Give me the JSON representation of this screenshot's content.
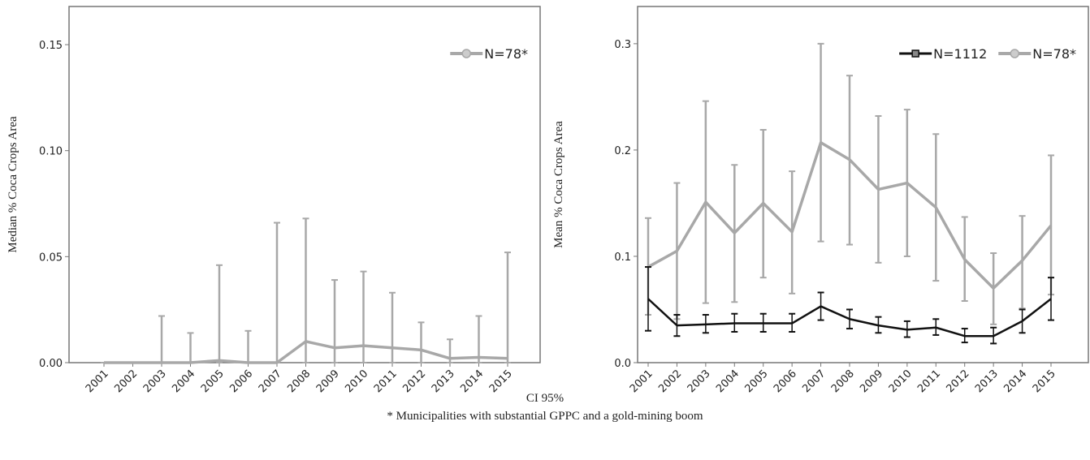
{
  "chart_data": [
    {
      "type": "line",
      "ylabel": "Median % Coca Crops Area",
      "categories": [
        "2001",
        "2002",
        "2003",
        "2004",
        "2005",
        "2006",
        "2007",
        "2008",
        "2009",
        "2010",
        "2011",
        "2012",
        "2013",
        "2014",
        "2015"
      ],
      "ylim": [
        0,
        0.168
      ],
      "yticks": [
        {
          "value": 0,
          "label": "0.00"
        },
        0.05,
        {
          "value": 0.1,
          "label": "0.10"
        },
        0.15
      ],
      "legend": "upper right",
      "series": [
        {
          "name": "N=78*",
          "color": "#a8a8a8",
          "marker": "circle",
          "values": [
            0,
            0,
            0,
            0,
            0.001,
            0,
            0,
            0.01,
            0.007,
            0.008,
            0.007,
            0.006,
            0.002,
            0.0025,
            0.002
          ],
          "ci_low": [
            0,
            0,
            0,
            0,
            0,
            0,
            0,
            0,
            0,
            0,
            0,
            0,
            0,
            0,
            0
          ],
          "ci_high": [
            0,
            0,
            0.022,
            0.014,
            0.046,
            0.015,
            0.066,
            0.068,
            0.039,
            0.043,
            0.033,
            0.019,
            0.011,
            0.022,
            0.052
          ]
        }
      ]
    },
    {
      "type": "line",
      "ylabel": "Mean % Coca Crops Area",
      "categories": [
        "2001",
        "2002",
        "2003",
        "2004",
        "2005",
        "2006",
        "2007",
        "2008",
        "2009",
        "2010",
        "2011",
        "2012",
        "2013",
        "2014",
        "2015"
      ],
      "ylim": [
        0,
        0.335
      ],
      "yticks": [
        {
          "value": 0,
          "label": "0.0"
        },
        0.1,
        0.2,
        0.3
      ],
      "legend": "upper right",
      "series": [
        {
          "name": "N=1112",
          "color": "#111111",
          "marker": "square",
          "values": [
            0.06,
            0.035,
            0.036,
            0.037,
            0.037,
            0.037,
            0.053,
            0.041,
            0.035,
            0.031,
            0.033,
            0.025,
            0.025,
            0.039,
            0.06
          ],
          "ci_low": [
            0.03,
            0.025,
            0.028,
            0.029,
            0.029,
            0.029,
            0.04,
            0.032,
            0.028,
            0.024,
            0.026,
            0.019,
            0.018,
            0.028,
            0.04
          ],
          "ci_high": [
            0.09,
            0.045,
            0.045,
            0.046,
            0.046,
            0.046,
            0.066,
            0.05,
            0.043,
            0.039,
            0.041,
            0.032,
            0.033,
            0.05,
            0.08
          ]
        },
        {
          "name": "N=78*",
          "color": "#a8a8a8",
          "marker": "circle",
          "values": [
            0.09,
            0.105,
            0.151,
            0.122,
            0.15,
            0.123,
            0.207,
            0.191,
            0.163,
            0.169,
            0.146,
            0.097,
            0.07,
            0.096,
            0.129
          ],
          "ci_low": [
            0.045,
            0.041,
            0.056,
            0.057,
            0.08,
            0.065,
            0.114,
            0.111,
            0.094,
            0.1,
            0.077,
            0.058,
            0.036,
            0.051,
            0.064
          ],
          "ci_high": [
            0.136,
            0.169,
            0.246,
            0.186,
            0.219,
            0.18,
            0.3,
            0.27,
            0.232,
            0.238,
            0.215,
            0.137,
            0.103,
            0.138,
            0.195
          ]
        }
      ]
    }
  ],
  "footer": {
    "line1": "CI 95%",
    "line2": "* Municipalities with substantial GPPC and a gold-mining boom"
  }
}
